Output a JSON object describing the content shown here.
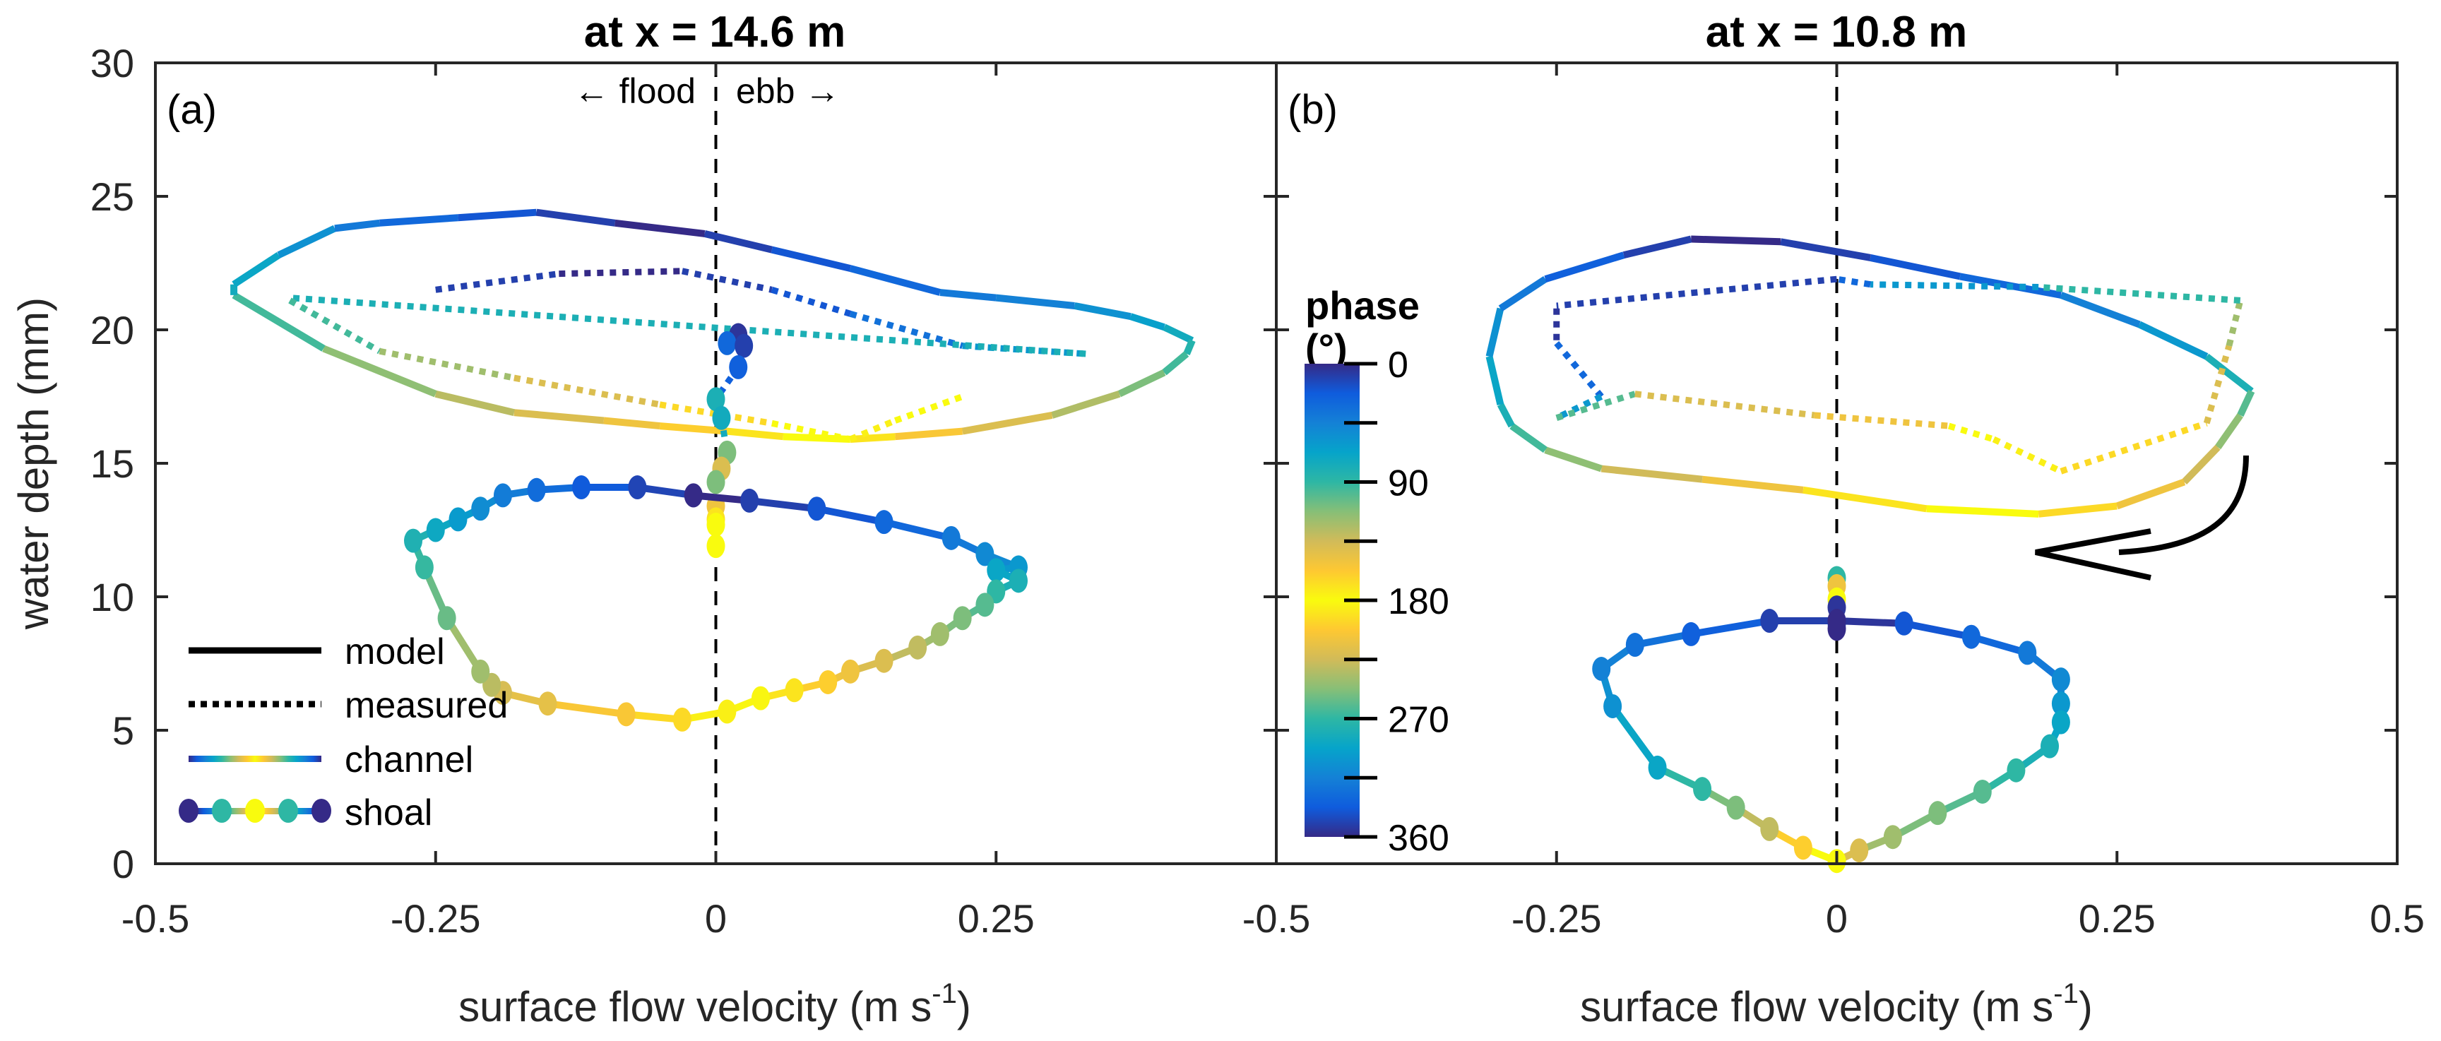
{
  "chart_data": [
    {
      "type": "line",
      "panel_label": "(a)",
      "title": "at x = 14.6 m",
      "xlabel": "surface flow velocity (m s",
      "xlabel_sup": "-1",
      "xlabel_close": ")",
      "ylabel": "water depth (mm)",
      "xlim": [
        -0.5,
        0.5
      ],
      "ylim": [
        0,
        30
      ],
      "xticks": [
        -0.5,
        -0.25,
        0,
        0.25
      ],
      "xtick_labels": [
        "-0.5",
        "-0.25",
        "0",
        "0.25"
      ],
      "yticks": [
        0,
        5,
        10,
        15,
        20,
        25,
        30
      ],
      "ytick_labels": [
        "0",
        "5",
        "10",
        "15",
        "20",
        "25",
        "30"
      ],
      "annotations": {
        "flood": "← flood",
        "ebb": "ebb →"
      },
      "zero_line": "dashed",
      "series": [
        {
          "name": "channel model",
          "style": "solid",
          "points": [
            [
              -0.01,
              23.6,
              10
            ],
            [
              0.05,
              23.0,
              20
            ],
            [
              0.12,
              22.3,
              30
            ],
            [
              0.2,
              21.4,
              40
            ],
            [
              0.25,
              21.2,
              45
            ],
            [
              0.32,
              20.9,
              55
            ],
            [
              0.37,
              20.5,
              65
            ],
            [
              0.4,
              20.1,
              75
            ],
            [
              0.425,
              19.6,
              85
            ],
            [
              0.42,
              19.1,
              95
            ],
            [
              0.4,
              18.4,
              110
            ],
            [
              0.36,
              17.6,
              125
            ],
            [
              0.3,
              16.8,
              140
            ],
            [
              0.22,
              16.2,
              155
            ],
            [
              0.16,
              16.0,
              170
            ],
            [
              0.12,
              15.9,
              180
            ],
            [
              0.06,
              16.0,
              190
            ],
            [
              0.01,
              16.2,
              200
            ],
            [
              -0.05,
              16.4,
              210
            ],
            [
              -0.1,
              16.6,
              220
            ],
            [
              -0.18,
              16.9,
              232
            ],
            [
              -0.25,
              17.6,
              245
            ],
            [
              -0.35,
              19.3,
              265
            ],
            [
              -0.43,
              21.3,
              285
            ],
            [
              -0.43,
              21.7,
              290
            ],
            [
              -0.39,
              22.8,
              305
            ],
            [
              -0.34,
              23.8,
              320
            ],
            [
              -0.3,
              24.0,
              330
            ],
            [
              -0.23,
              24.2,
              340
            ],
            [
              -0.16,
              24.4,
              350
            ],
            [
              -0.09,
              24.0,
              0
            ],
            [
              -0.01,
              23.6,
              10
            ]
          ]
        },
        {
          "name": "channel measured",
          "style": "dotted",
          "points": [
            [
              -0.25,
              21.5,
              350
            ],
            [
              -0.14,
              22.1,
              0
            ],
            [
              -0.03,
              22.2,
              10
            ],
            [
              0.05,
              21.5,
              20
            ],
            [
              0.12,
              20.6,
              35
            ],
            [
              0.22,
              19.4,
              60
            ],
            [
              0.33,
              19.1,
              80
            ],
            [
              -0.38,
              21.2,
              95
            ]
          ]
        },
        {
          "name": "channel measured lower",
          "style": "dotted",
          "points": [
            [
              -0.38,
              21.1,
              95
            ],
            [
              -0.3,
              19.2,
              120
            ],
            [
              -0.18,
              18.2,
              140
            ],
            [
              -0.05,
              17.2,
              165
            ],
            [
              0.05,
              16.5,
              180
            ],
            [
              0.12,
              15.9,
              185
            ],
            [
              0.16,
              16.6,
              180
            ],
            [
              0.22,
              17.5,
              175
            ]
          ]
        },
        {
          "name": "channel measured column",
          "style": "dotted-markers",
          "points": [
            [
              0.02,
              19.8,
              5
            ],
            [
              0.01,
              19.5,
              30
            ],
            [
              0.025,
              19.4,
              10
            ],
            [
              0.02,
              18.6,
              25
            ],
            [
              0.0,
              17.4,
              80
            ],
            [
              0.005,
              16.7,
              75
            ],
            [
              0.01,
              15.4,
              110
            ],
            [
              0.005,
              14.8,
              140
            ],
            [
              0.0,
              14.3,
              110
            ],
            [
              0.0,
              13.4,
              150
            ],
            [
              0.0,
              12.9,
              170
            ],
            [
              0.0,
              12.7,
              180
            ],
            [
              0.0,
              11.9,
              180
            ]
          ]
        },
        {
          "name": "shoal model",
          "style": "solid-markers",
          "points": [
            [
              -0.02,
              13.8,
              0
            ],
            [
              0.03,
              13.6,
              10
            ],
            [
              0.09,
              13.3,
              20
            ],
            [
              0.15,
              12.8,
              30
            ],
            [
              0.21,
              12.2,
              40
            ],
            [
              0.24,
              11.6,
              50
            ],
            [
              0.27,
              11.1,
              60
            ],
            [
              0.25,
              11.0,
              70
            ],
            [
              0.27,
              10.6,
              80
            ],
            [
              0.25,
              10.2,
              90
            ],
            [
              0.24,
              9.7,
              100
            ],
            [
              0.22,
              9.2,
              110
            ],
            [
              0.2,
              8.6,
              120
            ],
            [
              0.18,
              8.1,
              130
            ],
            [
              0.15,
              7.6,
              140
            ],
            [
              0.12,
              7.2,
              150
            ],
            [
              0.1,
              6.8,
              160
            ],
            [
              0.07,
              6.5,
              170
            ],
            [
              0.04,
              6.2,
              178
            ],
            [
              0.01,
              5.7,
              185
            ],
            [
              -0.03,
              5.4,
              195
            ],
            [
              -0.08,
              5.6,
              205
            ],
            [
              -0.15,
              6.0,
              215
            ],
            [
              -0.19,
              6.4,
              222
            ],
            [
              -0.2,
              6.7,
              232
            ],
            [
              -0.21,
              7.2,
              240
            ],
            [
              -0.24,
              9.2,
              255
            ],
            [
              -0.26,
              11.1,
              268
            ],
            [
              -0.27,
              12.1,
              278
            ],
            [
              -0.25,
              12.5,
              288
            ],
            [
              -0.23,
              12.9,
              298
            ],
            [
              -0.21,
              13.3,
              308
            ],
            [
              -0.19,
              13.8,
              318
            ],
            [
              -0.16,
              14.0,
              328
            ],
            [
              -0.12,
              14.1,
              338
            ],
            [
              -0.07,
              14.1,
              348
            ],
            [
              -0.02,
              13.8,
              0
            ]
          ]
        }
      ]
    },
    {
      "type": "line",
      "panel_label": "(b)",
      "title": "at x = 10.8 m",
      "xlabel": "surface flow velocity (m s",
      "xlabel_sup": "-1",
      "xlabel_close": ")",
      "xlim": [
        -0.5,
        0.5
      ],
      "ylim": [
        0,
        30
      ],
      "xticks": [
        -0.5,
        -0.25,
        0,
        0.25,
        0.5
      ],
      "xtick_labels": [
        "-0.5",
        "-0.25",
        "0",
        "0.25",
        "0.5"
      ],
      "zero_line": "dashed",
      "rotation_arrow": "counter-clockwise",
      "series": [
        {
          "name": "channel model",
          "style": "solid",
          "points": [
            [
              -0.13,
              23.4,
              0
            ],
            [
              -0.05,
              23.3,
              10
            ],
            [
              0.03,
              22.7,
              20
            ],
            [
              0.11,
              22.0,
              30
            ],
            [
              0.2,
              21.3,
              45
            ],
            [
              0.27,
              20.2,
              60
            ],
            [
              0.33,
              19.0,
              80
            ],
            [
              0.37,
              17.7,
              100
            ],
            [
              0.36,
              16.8,
              115
            ],
            [
              0.34,
              15.6,
              135
            ],
            [
              0.31,
              14.3,
              150
            ],
            [
              0.25,
              13.4,
              165
            ],
            [
              0.18,
              13.1,
              180
            ],
            [
              0.08,
              13.3,
              190
            ],
            [
              -0.03,
              14.0,
              210
            ],
            [
              -0.12,
              14.4,
              225
            ],
            [
              -0.21,
              14.8,
              245
            ],
            [
              -0.26,
              15.5,
              265
            ],
            [
              -0.29,
              16.4,
              280
            ],
            [
              -0.3,
              17.2,
              290
            ],
            [
              -0.31,
              19.0,
              305
            ],
            [
              -0.3,
              20.8,
              320
            ],
            [
              -0.26,
              21.9,
              335
            ],
            [
              -0.19,
              22.8,
              350
            ],
            [
              -0.13,
              23.4,
              0
            ]
          ]
        },
        {
          "name": "channel measured",
          "style": "dotted",
          "points": [
            [
              -0.25,
              20.8,
              355
            ],
            [
              -0.25,
              19.5,
              30
            ],
            [
              -0.21,
              17.5,
              60
            ],
            [
              -0.25,
              16.7,
              100
            ],
            [
              -0.18,
              17.6,
              140
            ],
            [
              -0.02,
              16.8,
              150
            ],
            [
              0.1,
              16.4,
              180
            ],
            [
              0.14,
              15.9,
              185
            ],
            [
              0.2,
              14.7,
              195
            ],
            [
              0.33,
              16.5,
              220
            ],
            [
              0.35,
              19.4,
              240
            ],
            [
              0.36,
              21.1,
              270
            ],
            [
              0.18,
              21.6,
              300
            ],
            [
              0.03,
              21.7,
              330
            ],
            [
              0.0,
              21.9,
              350
            ],
            [
              -0.25,
              20.9,
              0
            ]
          ]
        },
        {
          "name": "shoal measured column",
          "style": "markers",
          "points": [
            [
              0.0,
              10.7,
              90
            ],
            [
              0.0,
              10.4,
              150
            ],
            [
              0.0,
              9.9,
              180
            ],
            [
              0.0,
              9.6,
              355
            ],
            [
              0.0,
              9.0,
              20
            ],
            [
              0.0,
              8.8,
              0
            ]
          ]
        },
        {
          "name": "shoal model",
          "style": "solid-markers",
          "points": [
            [
              0.0,
              9.1,
              5
            ],
            [
              0.06,
              9.0,
              20
            ],
            [
              0.12,
              8.5,
              30
            ],
            [
              0.17,
              7.9,
              40
            ],
            [
              0.2,
              6.9,
              50
            ],
            [
              0.2,
              6.0,
              60
            ],
            [
              0.2,
              5.3,
              70
            ],
            [
              0.19,
              4.4,
              80
            ],
            [
              0.16,
              3.5,
              90
            ],
            [
              0.13,
              2.7,
              100
            ],
            [
              0.09,
              1.9,
              110
            ],
            [
              0.05,
              1.0,
              120
            ],
            [
              0.02,
              0.5,
              140
            ],
            [
              0.0,
              0.1,
              180
            ],
            [
              -0.03,
              0.6,
              200
            ],
            [
              -0.06,
              1.3,
              230
            ],
            [
              -0.09,
              2.1,
              250
            ],
            [
              -0.12,
              2.8,
              270
            ],
            [
              -0.16,
              3.6,
              290
            ],
            [
              -0.2,
              5.9,
              305
            ],
            [
              -0.21,
              7.3,
              315
            ],
            [
              -0.18,
              8.2,
              325
            ],
            [
              -0.13,
              8.6,
              335
            ],
            [
              -0.06,
              9.1,
              350
            ],
            [
              0.0,
              9.1,
              0
            ]
          ]
        }
      ]
    }
  ],
  "legend": {
    "items": [
      {
        "label": "model",
        "style": "solid"
      },
      {
        "label": "measured",
        "style": "dotted"
      },
      {
        "label": "channel",
        "style": "colormap-line"
      },
      {
        "label": "shoal",
        "style": "colormap-markers"
      }
    ],
    "placement": "lower-left of panel (a)"
  },
  "colorbar": {
    "title_line1": "phase",
    "title_line2": "(°)",
    "range": [
      0,
      360
    ],
    "ticks": [
      0,
      45,
      90,
      135,
      180,
      225,
      270,
      315,
      360
    ],
    "tick_labels": [
      "0",
      "",
      "90",
      "",
      "180",
      "",
      "270",
      "",
      "360"
    ],
    "colormap": "cyclic parula",
    "stops": [
      "#352a87",
      "#0f5cdd",
      "#1481d6",
      "#06a4ca",
      "#2eb7a4",
      "#87bf77",
      "#d1bb59",
      "#fec832",
      "#f9fb0e",
      "#fec832",
      "#d1bb59",
      "#87bf77",
      "#2eb7a4",
      "#06a4ca",
      "#1481d6",
      "#0f5cdd",
      "#352a87"
    ]
  }
}
